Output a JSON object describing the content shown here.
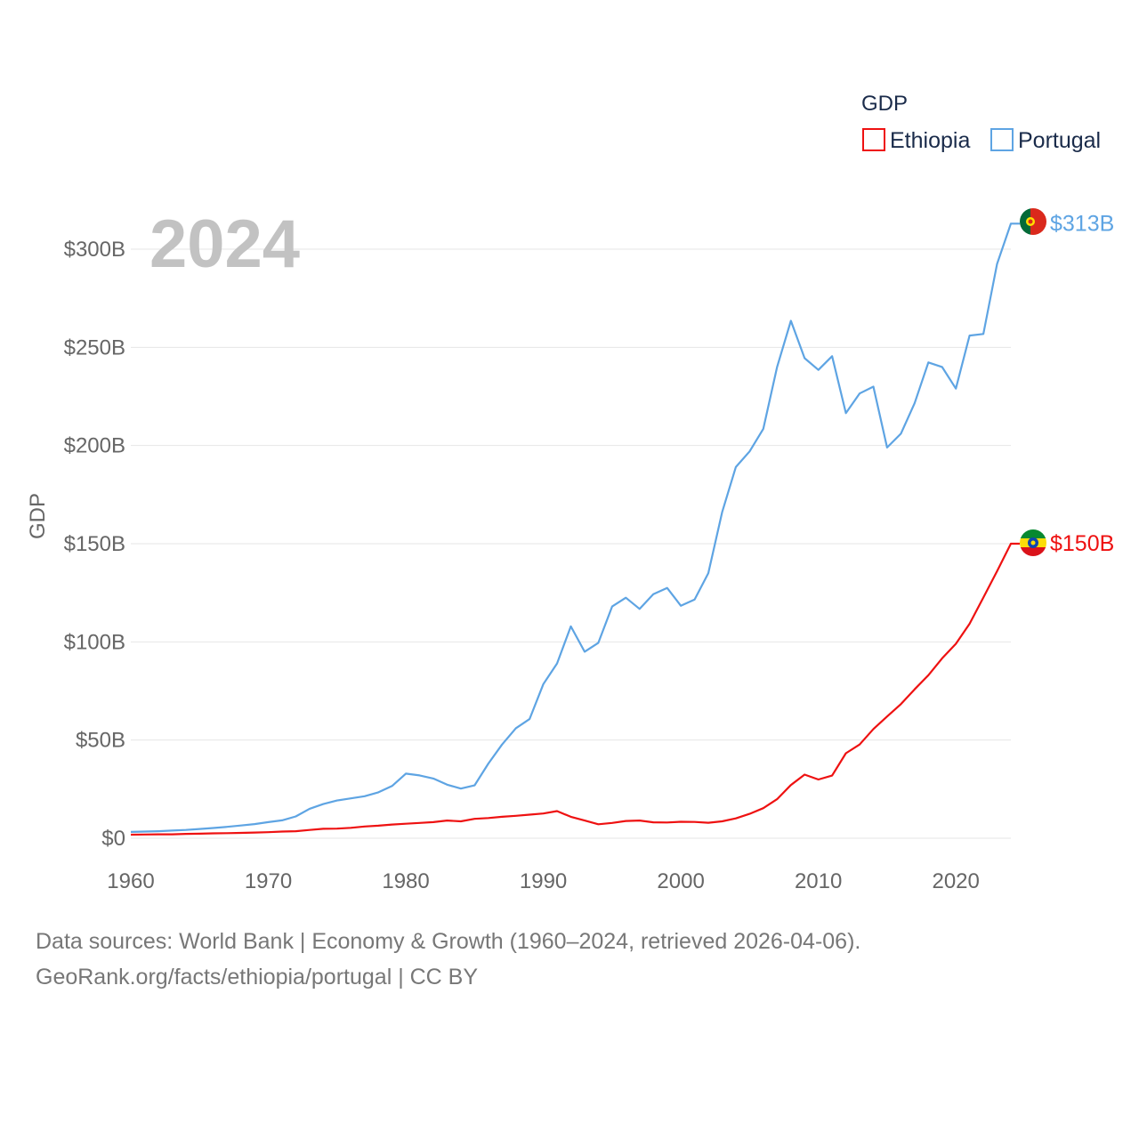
{
  "chart_data": {
    "type": "line",
    "title": "",
    "legend_title": "GDP",
    "year_label": "2024",
    "ylabel": "GDP",
    "xlabel": "",
    "xlim": [
      1960,
      2024
    ],
    "ylim": [
      0,
      300
    ],
    "y_unit": "billion USD",
    "x_ticks": [
      "1960",
      "1970",
      "1980",
      "1990",
      "2000",
      "2010",
      "2020"
    ],
    "y_ticks": [
      {
        "value": 0,
        "label": "$0"
      },
      {
        "value": 50,
        "label": "$50B"
      },
      {
        "value": 100,
        "label": "$100B"
      },
      {
        "value": 150,
        "label": "$150B"
      },
      {
        "value": 200,
        "label": "$200B"
      },
      {
        "value": 250,
        "label": "$250B"
      },
      {
        "value": 300,
        "label": "$300B"
      }
    ],
    "x": [
      1960,
      1961,
      1962,
      1963,
      1964,
      1965,
      1966,
      1967,
      1968,
      1969,
      1970,
      1971,
      1972,
      1973,
      1974,
      1975,
      1976,
      1977,
      1978,
      1979,
      1980,
      1981,
      1982,
      1983,
      1984,
      1985,
      1986,
      1987,
      1988,
      1989,
      1990,
      1991,
      1992,
      1993,
      1994,
      1995,
      1996,
      1997,
      1998,
      1999,
      2000,
      2001,
      2002,
      2003,
      2004,
      2005,
      2006,
      2007,
      2008,
      2009,
      2010,
      2011,
      2012,
      2013,
      2014,
      2015,
      2016,
      2017,
      2018,
      2019,
      2020,
      2021,
      2022,
      2023,
      2024
    ],
    "series": [
      {
        "name": "Ethiopia",
        "color": "#ee1111",
        "end_label": "$150B",
        "values": [
          1.8,
          1.9,
          2.0,
          2.0,
          2.2,
          2.3,
          2.5,
          2.6,
          2.7,
          2.9,
          3.1,
          3.4,
          3.6,
          4.2,
          4.8,
          4.9,
          5.3,
          6.0,
          6.4,
          7.0,
          7.4,
          7.8,
          8.2,
          9.0,
          8.6,
          9.9,
          10.3,
          10.9,
          11.4,
          12.0,
          12.6,
          13.8,
          10.9,
          9.0,
          7.1,
          7.8,
          8.8,
          9.0,
          8.1,
          8.0,
          8.4,
          8.3,
          7.9,
          8.6,
          10.1,
          12.4,
          15.3,
          19.9,
          27.1,
          32.4,
          29.9,
          31.9,
          43.3,
          47.7,
          55.6,
          62.0,
          68.3,
          75.8,
          83.0,
          91.6,
          99.0,
          109.2,
          122.6,
          136.0,
          150.0
        ]
      },
      {
        "name": "Portugal",
        "color": "#5ea4e3",
        "end_label": "$313B",
        "values": [
          3.2,
          3.4,
          3.6,
          3.9,
          4.2,
          4.7,
          5.2,
          5.8,
          6.5,
          7.2,
          8.2,
          9.1,
          11.1,
          15.0,
          17.4,
          19.2,
          20.3,
          21.4,
          23.4,
          26.6,
          32.9,
          32.0,
          30.4,
          27.3,
          25.3,
          26.9,
          38.0,
          47.7,
          56.0,
          60.7,
          78.5,
          89.0,
          107.9,
          95.0,
          99.5,
          118.0,
          122.5,
          116.8,
          124.3,
          127.5,
          118.4,
          121.6,
          135.0,
          166.0,
          189.0,
          197.0,
          208.5,
          240.0,
          263.5,
          244.5,
          238.5,
          245.5,
          216.5,
          226.5,
          230.0,
          199.0,
          206.0,
          221.5,
          242.3,
          240.0,
          229.0,
          256.0,
          256.8,
          292.5,
          313.0
        ]
      }
    ]
  },
  "footer": {
    "line1": "Data sources: World Bank | Economy & Growth (1960–2024, retrieved 2026-04-06).",
    "line2": "GeoRank.org/facts/ethiopia/portugal | CC BY"
  }
}
